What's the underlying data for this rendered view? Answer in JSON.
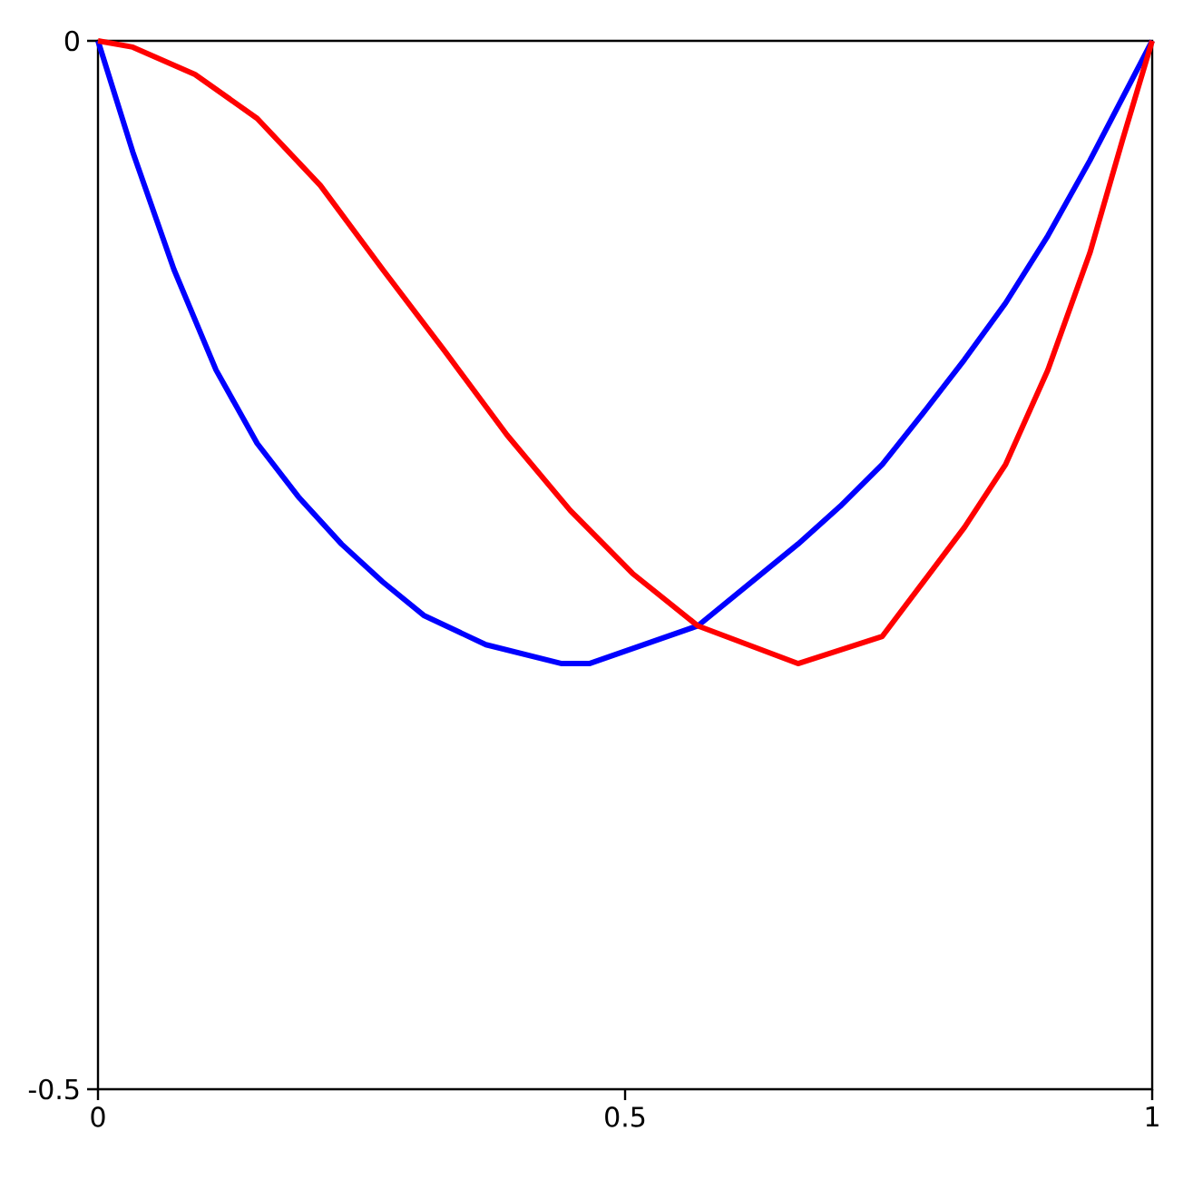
{
  "chart_data": {
    "type": "line",
    "xlim": [
      0,
      1
    ],
    "ylim": [
      -0.5,
      0
    ],
    "xticks": [
      0,
      0.5,
      1
    ],
    "yticks": [
      -0.5,
      0
    ],
    "series": [
      {
        "color": "#0000ff",
        "x": [
          0,
          0.033,
          0.072,
          0.112,
          0.151,
          0.191,
          0.231,
          0.27,
          0.309,
          0.368,
          0.44,
          0.466,
          0.569,
          0.625,
          0.664,
          0.704,
          0.744,
          0.782,
          0.822,
          0.861,
          0.901,
          0.941,
          1
        ],
        "values": [
          0,
          -0.053,
          -0.109,
          -0.157,
          -0.192,
          -0.218,
          -0.24,
          -0.258,
          -0.274,
          -0.288,
          -0.297,
          -0.297,
          -0.279,
          -0.256,
          -0.24,
          -0.222,
          -0.202,
          -0.178,
          -0.152,
          -0.125,
          -0.093,
          -0.057,
          0
        ]
      },
      {
        "color": "#ff0000",
        "x": [
          0,
          0.033,
          0.092,
          0.151,
          0.211,
          0.27,
          0.329,
          0.388,
          0.448,
          0.507,
          0.569,
          0.664,
          0.744,
          0.822,
          0.861,
          0.901,
          0.941,
          0.972,
          1
        ],
        "values": [
          0,
          -0.003,
          -0.016,
          -0.037,
          -0.069,
          -0.109,
          -0.148,
          -0.188,
          -0.224,
          -0.254,
          -0.279,
          -0.297,
          -0.284,
          -0.232,
          -0.202,
          -0.157,
          -0.101,
          -0.047,
          0
        ]
      }
    ]
  }
}
